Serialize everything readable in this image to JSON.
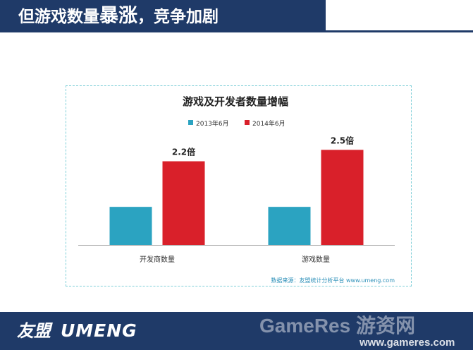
{
  "header": {
    "title_before": "但游戏数量",
    "title_emphasis": "暴涨",
    "title_after": "，竞争加剧"
  },
  "chart_data": {
    "type": "bar",
    "title": "游戏及开发者数量增幅",
    "categories": [
      "开发商数量",
      "游戏数量"
    ],
    "series": [
      {
        "name": "2013年6月",
        "color": "#2ba3c1",
        "values": [
          1,
          1
        ]
      },
      {
        "name": "2014年6月",
        "color": "#d9202a",
        "values": [
          2.2,
          2.5
        ]
      }
    ],
    "data_labels": [
      "2.2倍",
      "2.5倍"
    ],
    "ylim": [
      0,
      2.6
    ],
    "legend": "top",
    "grid": false,
    "source": "数据来源：友盟统计分析平台  www.umeng.com"
  },
  "footer": {
    "brand_cn": "友盟",
    "brand_en": "UMENG",
    "watermark": "GameRes 游资网",
    "watermark_url": "www.gameres.com"
  }
}
